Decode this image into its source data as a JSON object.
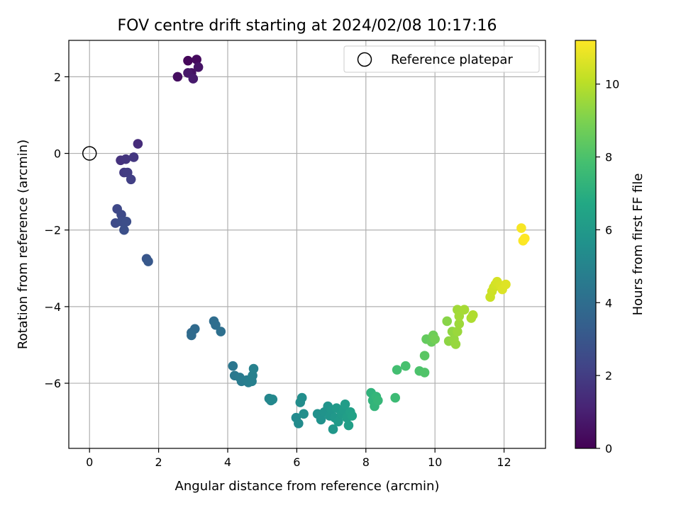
{
  "chart_data": {
    "type": "scatter",
    "title": "FOV centre drift starting at 2024/02/08 10:17:16",
    "xlabel": "Angular distance from reference (arcmin)",
    "ylabel": "Rotation from reference (arcmin)",
    "xlim": [
      -0.6,
      13.2
    ],
    "ylim": [
      -7.7,
      2.95
    ],
    "xticks": [
      0,
      2,
      4,
      6,
      8,
      10,
      12
    ],
    "yticks": [
      -6,
      -4,
      -2,
      0,
      2
    ],
    "grid": true,
    "legend": {
      "placement": "top-right",
      "entries": [
        "Reference platepar"
      ]
    },
    "reference_point": {
      "x": 0,
      "y": 0
    },
    "colorbar": {
      "label": "Hours from first FF file",
      "range": [
        0,
        11.2
      ],
      "ticks": [
        0,
        2,
        4,
        6,
        8,
        10
      ],
      "colormap": "viridis"
    },
    "series": [
      {
        "points": [
          [
            2.85,
            2.42,
            0.2
          ],
          [
            3.1,
            2.45,
            0.3
          ],
          [
            2.55,
            2.0,
            0.4
          ],
          [
            2.95,
            2.1,
            0.5
          ],
          [
            3.15,
            2.25,
            0.6
          ],
          [
            2.85,
            2.1,
            0.7
          ],
          [
            3.0,
            1.95,
            0.8
          ],
          [
            1.4,
            0.25,
            1.4
          ],
          [
            0.9,
            -0.18,
            1.6
          ],
          [
            1.05,
            -0.15,
            1.7
          ],
          [
            1.28,
            -0.1,
            1.8
          ],
          [
            1.0,
            -0.5,
            1.9
          ],
          [
            1.1,
            -0.5,
            2.0
          ],
          [
            1.2,
            -0.68,
            2.1
          ],
          [
            0.8,
            -1.45,
            2.4
          ],
          [
            0.92,
            -1.6,
            2.5
          ],
          [
            0.75,
            -1.82,
            2.55
          ],
          [
            0.92,
            -1.78,
            2.6
          ],
          [
            1.07,
            -1.78,
            2.65
          ],
          [
            1.0,
            -2.0,
            2.7
          ],
          [
            1.65,
            -2.75,
            3.0
          ],
          [
            1.7,
            -2.82,
            3.05
          ],
          [
            2.95,
            -4.68,
            3.8
          ],
          [
            3.05,
            -4.58,
            3.85
          ],
          [
            2.95,
            -4.75,
            3.9
          ],
          [
            3.6,
            -4.38,
            4.0
          ],
          [
            3.65,
            -4.48,
            4.05
          ],
          [
            3.8,
            -4.65,
            4.1
          ],
          [
            4.15,
            -5.55,
            4.4
          ],
          [
            4.2,
            -5.8,
            4.5
          ],
          [
            4.35,
            -5.85,
            4.55
          ],
          [
            4.4,
            -5.95,
            4.6
          ],
          [
            4.55,
            -5.92,
            4.7
          ],
          [
            4.6,
            -5.98,
            4.75
          ],
          [
            4.7,
            -5.95,
            4.8
          ],
          [
            4.72,
            -5.8,
            4.85
          ],
          [
            4.75,
            -5.62,
            4.9
          ],
          [
            5.2,
            -6.4,
            5.1
          ],
          [
            5.25,
            -6.45,
            5.15
          ],
          [
            5.3,
            -6.42,
            5.2
          ],
          [
            5.98,
            -6.9,
            5.3
          ],
          [
            6.05,
            -7.05,
            5.35
          ],
          [
            6.1,
            -6.5,
            5.4
          ],
          [
            6.15,
            -6.38,
            5.45
          ],
          [
            6.2,
            -6.8,
            5.5
          ],
          [
            6.6,
            -6.8,
            5.6
          ],
          [
            6.7,
            -6.95,
            5.65
          ],
          [
            6.8,
            -6.75,
            5.7
          ],
          [
            6.9,
            -6.6,
            5.75
          ],
          [
            6.95,
            -6.85,
            5.8
          ],
          [
            7.0,
            -6.7,
            5.85
          ],
          [
            7.05,
            -7.2,
            5.9
          ],
          [
            7.1,
            -6.9,
            5.95
          ],
          [
            7.15,
            -6.65,
            6.0
          ],
          [
            7.2,
            -7.0,
            6.05
          ],
          [
            7.3,
            -6.8,
            6.1
          ],
          [
            7.35,
            -6.7,
            6.15
          ],
          [
            7.4,
            -6.55,
            6.2
          ],
          [
            7.45,
            -6.9,
            6.25
          ],
          [
            7.5,
            -7.1,
            6.3
          ],
          [
            7.55,
            -6.75,
            6.35
          ],
          [
            7.6,
            -6.85,
            6.4
          ],
          [
            8.15,
            -6.25,
            7.2
          ],
          [
            8.2,
            -6.45,
            7.25
          ],
          [
            8.25,
            -6.6,
            7.3
          ],
          [
            8.3,
            -6.35,
            7.35
          ],
          [
            8.35,
            -6.45,
            7.4
          ],
          [
            8.85,
            -6.38,
            7.6
          ],
          [
            8.9,
            -5.65,
            7.8
          ],
          [
            9.15,
            -5.55,
            7.9
          ],
          [
            9.55,
            -5.68,
            8.0
          ],
          [
            9.7,
            -5.72,
            8.1
          ],
          [
            9.7,
            -5.28,
            8.3
          ],
          [
            9.75,
            -4.85,
            8.5
          ],
          [
            9.9,
            -4.92,
            8.6
          ],
          [
            9.95,
            -4.75,
            8.7
          ],
          [
            10.0,
            -4.85,
            8.8
          ],
          [
            10.35,
            -4.38,
            9.2
          ],
          [
            10.4,
            -4.9,
            9.3
          ],
          [
            10.5,
            -4.65,
            9.35
          ],
          [
            10.55,
            -4.85,
            9.4
          ],
          [
            10.6,
            -4.98,
            9.45
          ],
          [
            10.65,
            -4.65,
            9.5
          ],
          [
            10.7,
            -4.45,
            9.55
          ],
          [
            10.65,
            -4.08,
            9.6
          ],
          [
            10.7,
            -4.25,
            9.65
          ],
          [
            10.85,
            -4.08,
            9.7
          ],
          [
            11.05,
            -4.3,
            9.8
          ],
          [
            11.1,
            -4.22,
            9.85
          ],
          [
            11.6,
            -3.75,
            10.3
          ],
          [
            11.65,
            -3.6,
            10.35
          ],
          [
            11.7,
            -3.5,
            10.4
          ],
          [
            11.75,
            -3.42,
            10.45
          ],
          [
            11.8,
            -3.35,
            10.5
          ],
          [
            11.9,
            -3.45,
            10.55
          ],
          [
            11.95,
            -3.55,
            10.6
          ],
          [
            12.05,
            -3.42,
            10.65
          ],
          [
            12.5,
            -1.95,
            11.1
          ],
          [
            12.55,
            -2.28,
            11.15
          ],
          [
            12.6,
            -2.22,
            11.2
          ]
        ]
      }
    ]
  }
}
